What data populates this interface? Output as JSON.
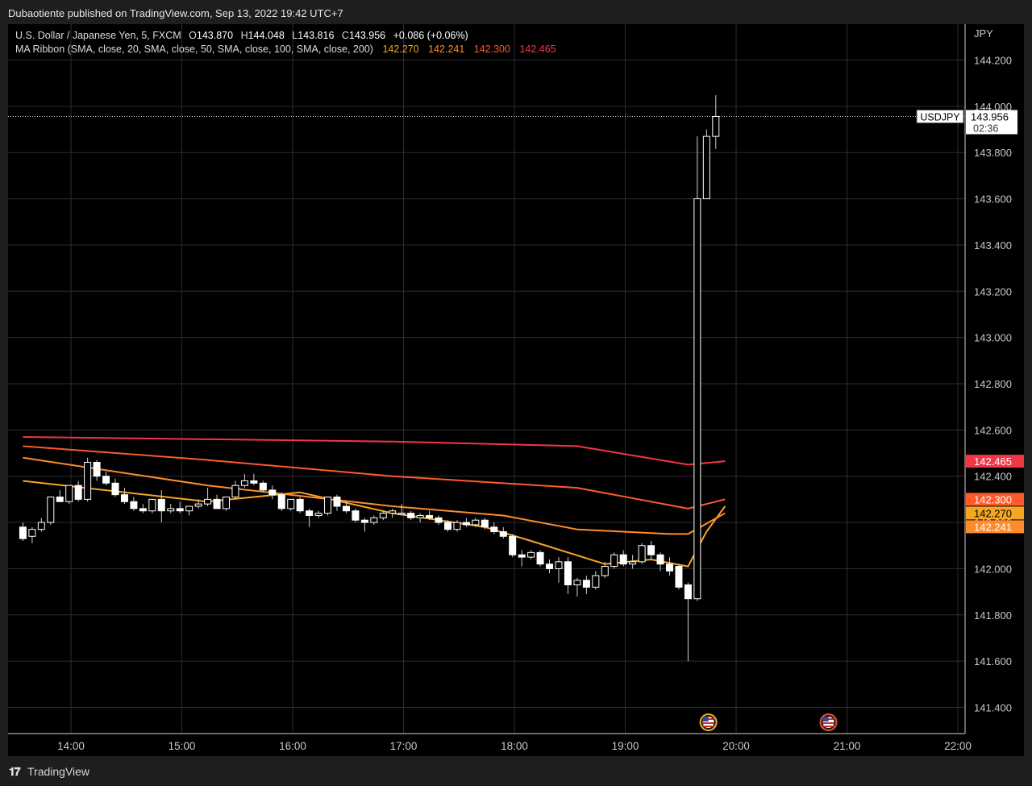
{
  "header": {
    "publisher": "Dubaotiente published on TradingView.com, Sep 13, 2022 19:42 UTC+7"
  },
  "legend": {
    "instrument": "U.S. Dollar / Japanese Yen, 5, FXCM",
    "ohlc": [
      {
        "label": "O",
        "value": "143.870"
      },
      {
        "label": "H",
        "value": "144.048"
      },
      {
        "label": "L",
        "value": "143.816"
      },
      {
        "label": "C",
        "value": "143.956"
      }
    ],
    "change": "+0.086 (+0.06%)",
    "indicator_name": "MA Ribbon (SMA, close, 20, SMA, close, 50, SMA, close, 100, SMA, close, 200)",
    "indicator_values": [
      {
        "value": "142.270",
        "color": "#f5a623"
      },
      {
        "value": "142.241",
        "color": "#ff8c2a"
      },
      {
        "value": "142.300",
        "color": "#ff5a2a"
      },
      {
        "value": "142.465",
        "color": "#f23645"
      }
    ]
  },
  "chart_data": {
    "type": "candlestick",
    "currency": "JPY",
    "symbol": "USDJPY",
    "last_price": "143.956",
    "countdown": "02:36",
    "ylim": [
      141.26,
      144.4
    ],
    "y_ticks": [
      "144.200",
      "144.000",
      "143.800",
      "143.600",
      "143.400",
      "143.200",
      "143.000",
      "142.800",
      "142.600",
      "142.400",
      "142.200",
      "142.000",
      "141.800",
      "141.600",
      "141.400"
    ],
    "x_ticks": [
      "14:00",
      "15:00",
      "16:00",
      "17:00",
      "18:00",
      "19:00",
      "20:00",
      "21:00",
      "22:00"
    ],
    "x_start": "13:34",
    "minutes_per_bar": 5,
    "candles": [
      [
        142.18,
        142.2,
        142.12,
        142.13
      ],
      [
        142.14,
        142.18,
        142.11,
        142.17
      ],
      [
        142.17,
        142.22,
        142.16,
        142.2
      ],
      [
        142.2,
        142.31,
        142.19,
        142.31
      ],
      [
        142.31,
        142.34,
        142.29,
        142.29
      ],
      [
        142.29,
        142.36,
        142.28,
        142.36
      ],
      [
        142.36,
        142.38,
        142.29,
        142.3
      ],
      [
        142.3,
        142.48,
        142.29,
        142.46
      ],
      [
        142.46,
        142.47,
        142.38,
        142.4
      ],
      [
        142.4,
        142.42,
        142.36,
        142.37
      ],
      [
        142.37,
        142.39,
        142.31,
        142.32
      ],
      [
        142.32,
        142.35,
        142.28,
        142.29
      ],
      [
        142.29,
        142.31,
        142.25,
        142.26
      ],
      [
        142.26,
        142.28,
        142.24,
        142.25
      ],
      [
        142.25,
        142.3,
        142.24,
        142.3
      ],
      [
        142.3,
        142.34,
        142.2,
        142.25
      ],
      [
        142.25,
        142.28,
        142.24,
        142.26
      ],
      [
        142.26,
        142.29,
        142.24,
        142.25
      ],
      [
        142.25,
        142.27,
        142.23,
        142.27
      ],
      [
        142.27,
        142.3,
        142.26,
        142.28
      ],
      [
        142.28,
        142.35,
        142.27,
        142.3
      ],
      [
        142.3,
        142.32,
        142.26,
        142.26
      ],
      [
        142.26,
        142.31,
        142.25,
        142.31
      ],
      [
        142.31,
        142.38,
        142.3,
        142.36
      ],
      [
        142.36,
        142.41,
        142.35,
        142.38
      ],
      [
        142.38,
        142.41,
        142.36,
        142.37
      ],
      [
        142.37,
        142.38,
        142.33,
        142.34
      ],
      [
        142.34,
        142.36,
        142.3,
        142.32
      ],
      [
        142.32,
        142.33,
        142.25,
        142.26
      ],
      [
        142.26,
        142.3,
        142.25,
        142.3
      ],
      [
        142.3,
        142.31,
        142.24,
        142.25
      ],
      [
        142.25,
        142.26,
        142.18,
        142.23
      ],
      [
        142.23,
        142.25,
        142.22,
        142.24
      ],
      [
        142.24,
        142.31,
        142.23,
        142.31
      ],
      [
        142.31,
        142.32,
        142.25,
        142.27
      ],
      [
        142.27,
        142.29,
        142.24,
        142.25
      ],
      [
        142.25,
        142.26,
        142.2,
        142.21
      ],
      [
        142.21,
        142.22,
        142.16,
        142.2
      ],
      [
        142.2,
        142.23,
        142.19,
        142.22
      ],
      [
        142.22,
        142.25,
        142.21,
        142.24
      ],
      [
        142.24,
        142.26,
        142.22,
        142.25
      ],
      [
        142.24,
        142.28,
        142.23,
        142.24
      ],
      [
        142.24,
        142.25,
        142.21,
        142.22
      ],
      [
        142.22,
        142.24,
        142.2,
        142.23
      ],
      [
        142.23,
        142.25,
        142.21,
        142.22
      ],
      [
        142.22,
        142.23,
        142.19,
        142.2
      ],
      [
        142.2,
        142.21,
        142.16,
        142.17
      ],
      [
        142.17,
        142.21,
        142.16,
        142.2
      ],
      [
        142.2,
        142.22,
        142.18,
        142.19
      ],
      [
        142.19,
        142.22,
        142.18,
        142.21
      ],
      [
        142.21,
        142.22,
        142.17,
        142.18
      ],
      [
        142.18,
        142.2,
        142.15,
        142.16
      ],
      [
        142.16,
        142.18,
        142.13,
        142.14
      ],
      [
        142.14,
        142.15,
        142.05,
        142.06
      ],
      [
        142.06,
        142.08,
        142.01,
        142.05
      ],
      [
        142.05,
        142.08,
        142.04,
        142.07
      ],
      [
        142.07,
        142.08,
        142.01,
        142.02
      ],
      [
        142.02,
        142.04,
        141.98,
        142.0
      ],
      [
        142.0,
        142.05,
        141.94,
        142.03
      ],
      [
        142.03,
        142.05,
        141.89,
        141.93
      ],
      [
        141.93,
        141.96,
        141.88,
        141.95
      ],
      [
        141.95,
        141.97,
        141.89,
        141.92
      ],
      [
        141.92,
        141.99,
        141.91,
        141.97
      ],
      [
        141.97,
        142.03,
        141.96,
        142.01
      ],
      [
        142.01,
        142.07,
        142.0,
        142.06
      ],
      [
        142.06,
        142.08,
        142.01,
        142.02
      ],
      [
        142.02,
        142.06,
        142.0,
        142.03
      ],
      [
        142.03,
        142.11,
        142.02,
        142.1
      ],
      [
        142.1,
        142.12,
        142.04,
        142.06
      ],
      [
        142.06,
        142.07,
        141.99,
        142.02
      ],
      [
        142.02,
        142.05,
        141.97,
        141.99
      ],
      [
        142.01,
        142.02,
        141.91,
        141.92
      ],
      [
        141.93,
        141.94,
        141.6,
        141.87
      ],
      [
        141.87,
        143.87,
        141.86,
        143.6
      ],
      [
        143.6,
        143.9,
        143.6,
        143.87
      ],
      [
        143.87,
        144.048,
        143.816,
        143.956
      ]
    ],
    "series": [
      {
        "name": "MA 20",
        "color": "#f5a623",
        "anchors": [
          [
            0,
            142.38
          ],
          [
            20,
            142.29
          ],
          [
            30,
            142.33
          ],
          [
            40,
            142.24
          ],
          [
            50,
            142.18
          ],
          [
            55,
            142.12
          ],
          [
            63,
            142.02
          ],
          [
            68,
            142.04
          ],
          [
            72,
            142.01
          ],
          [
            74,
            142.16
          ],
          [
            76,
            142.27
          ]
        ]
      },
      {
        "name": "MA 50",
        "color": "#ff8c2a",
        "anchors": [
          [
            0,
            142.48
          ],
          [
            20,
            142.36
          ],
          [
            40,
            142.27
          ],
          [
            52,
            142.23
          ],
          [
            60,
            142.17
          ],
          [
            70,
            142.15
          ],
          [
            72,
            142.15
          ],
          [
            76,
            142.24
          ]
        ]
      },
      {
        "name": "MA 100",
        "color": "#ff5a2a",
        "anchors": [
          [
            0,
            142.53
          ],
          [
            20,
            142.47
          ],
          [
            40,
            142.4
          ],
          [
            60,
            142.35
          ],
          [
            72,
            142.26
          ],
          [
            76,
            142.3
          ]
        ]
      },
      {
        "name": "MA 200",
        "color": "#f23645",
        "anchors": [
          [
            0,
            142.57
          ],
          [
            40,
            142.55
          ],
          [
            60,
            142.53
          ],
          [
            72,
            142.45
          ],
          [
            76,
            142.465
          ]
        ]
      }
    ],
    "event_markers": [
      {
        "time": "19:45",
        "ring": "#e7b21b"
      },
      {
        "time": "20:50",
        "ring": "#e0553c"
      }
    ]
  },
  "footer": {
    "brand": "TradingView"
  }
}
